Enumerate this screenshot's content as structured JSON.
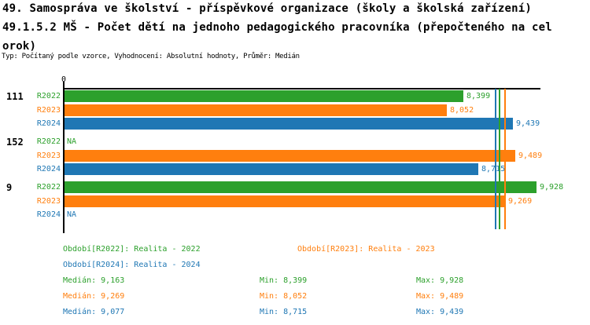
{
  "page": {
    "title_line1": "49. Samospráva ve školství - příspěvkové organizace (školy a školská zařízení)",
    "title_line2": "49.1.5.2 MŠ - Počet dětí na jednoho pedagogického pracovníka (přepočteného na cel",
    "title_line3": "orok)",
    "meta_line": "Typ: Počítaný podle vzorce, Vyhodnocení: Absolutní hodnoty, Průměr: Medián"
  },
  "colors": {
    "R2022": "#2ca02c",
    "R2023": "#ff7f0e",
    "R2024": "#1f77b4",
    "axis": "#000000"
  },
  "chart_data": {
    "type": "bar",
    "orientation": "horizontal",
    "title": "49.1.5.2 MŠ - Počet dětí na jednoho pedagogického pracovníka (přepočteného na celorok)",
    "value_axis": {
      "min": 0,
      "max": 10,
      "zero_tick_label": "0",
      "grid": false
    },
    "series_order": [
      "R2022",
      "R2023",
      "R2024"
    ],
    "series": [
      {
        "id": "R2022",
        "name": "Realita - 2022",
        "color": "#2ca02c"
      },
      {
        "id": "R2023",
        "name": "Realita - 2023",
        "color": "#ff7f0e"
      },
      {
        "id": "R2024",
        "name": "Realita - 2024",
        "color": "#1f77b4"
      }
    ],
    "groups": [
      {
        "label": "111",
        "values": {
          "R2022": 8.399,
          "R2023": 8.052,
          "R2024": 9.439
        },
        "value_labels": {
          "R2022": "8,399",
          "R2023": "8,052",
          "R2024": "9,439"
        }
      },
      {
        "label": "152",
        "values": {
          "R2022": null,
          "R2023": 9.489,
          "R2024": 8.715
        },
        "value_labels": {
          "R2022": "NA",
          "R2023": "9,489",
          "R2024": "8,715"
        }
      },
      {
        "label": "9",
        "values": {
          "R2022": 9.928,
          "R2023": 9.269,
          "R2024": null
        },
        "value_labels": {
          "R2022": "9,928",
          "R2023": "9,269",
          "R2024": "NA"
        }
      }
    ],
    "median_lines": [
      {
        "series": "R2022",
        "value": 9.163
      },
      {
        "series": "R2023",
        "value": 9.269
      },
      {
        "series": "R2024",
        "value": 9.077
      }
    ],
    "stats": {
      "R2022": {
        "median": 9.163,
        "min": 8.399,
        "max": 9.928
      },
      "R2023": {
        "median": 9.269,
        "min": 8.052,
        "max": 9.489
      },
      "R2024": {
        "median": 9.077,
        "min": 8.715,
        "max": 9.439
      }
    }
  },
  "legend": {
    "periods": [
      {
        "series": "R2022",
        "label": "Období[R2022]: Realita - 2022"
      },
      {
        "series": "R2023",
        "label": "Období[R2023]: Realita - 2023"
      },
      {
        "series": "R2024",
        "label": "Období[R2024]: Realita - 2024"
      }
    ],
    "stats": [
      {
        "series": "R2022",
        "median": "Medián: 9,163",
        "min": "Min: 8,399",
        "max": "Max: 9,928"
      },
      {
        "series": "R2023",
        "median": "Medián: 9,269",
        "min": "Min: 8,052",
        "max": "Max: 9,489"
      },
      {
        "series": "R2024",
        "median": "Medián: 9,077",
        "min": "Min: 8,715",
        "max": "Max: 9,439"
      }
    ]
  }
}
